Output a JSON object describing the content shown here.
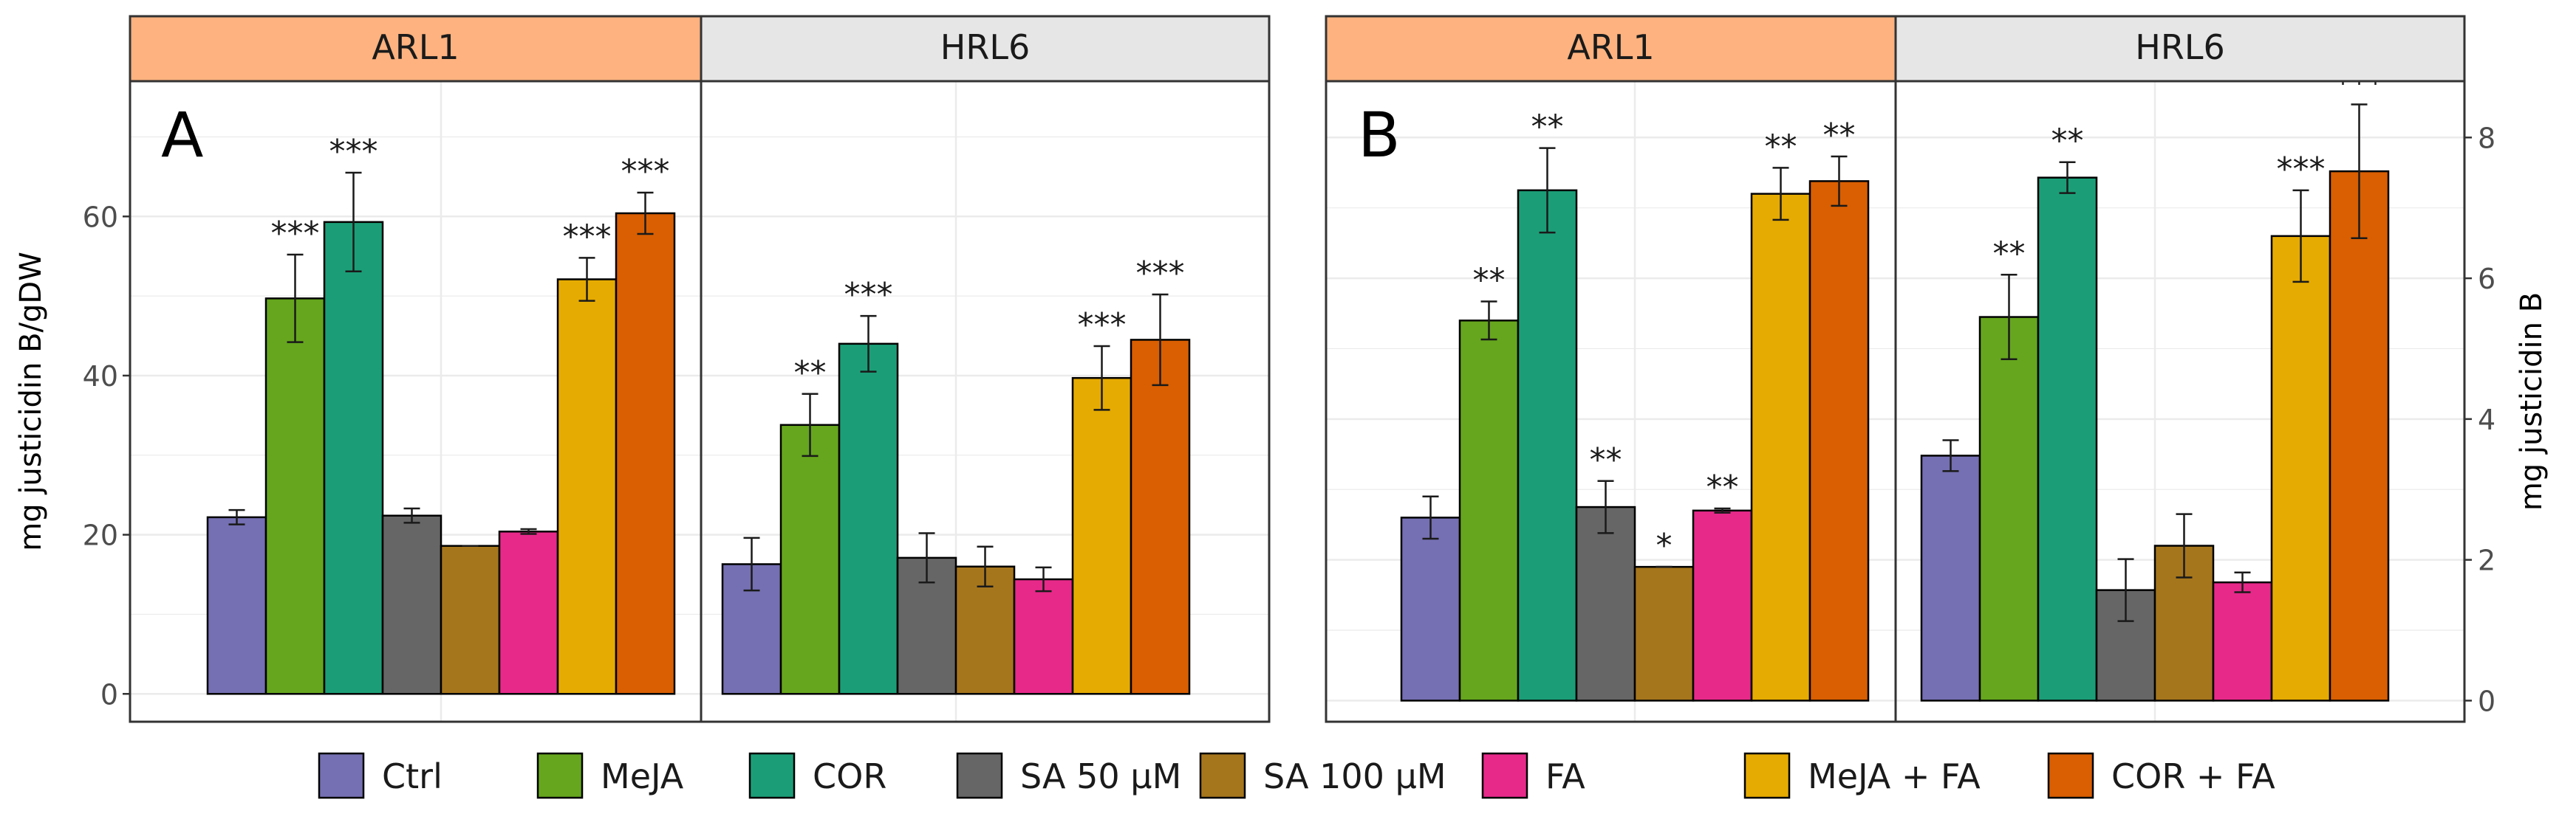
{
  "figure": {
    "legend": [
      {
        "label": "Ctrl",
        "color": "#7570b3"
      },
      {
        "label": "MeJA",
        "color": "#66a61e"
      },
      {
        "label": "COR",
        "color": "#1b9e77"
      },
      {
        "label": "SA 50 µM",
        "color": "#666666"
      },
      {
        "label": "SA 100 µM",
        "color": "#a6761d"
      },
      {
        "label": "FA",
        "color": "#e7298a"
      },
      {
        "label": "MeJA + FA",
        "color": "#e6ab02"
      },
      {
        "label": "COR + FA",
        "color": "#d95f02"
      }
    ],
    "strip_colors": {
      "ARL1": "#fdb27f",
      "HRL6": "#e6e6e6"
    }
  },
  "chart_data": [
    {
      "type": "bar",
      "panel_label": "A",
      "ylabel": "mg justicidin B/gDW",
      "yaxis_side": "left",
      "ylim": [
        -3.5,
        77
      ],
      "yticks": [
        0,
        20,
        40,
        60
      ],
      "grid": true,
      "facets": [
        {
          "name": "ARL1",
          "categories": [
            "Ctrl",
            "MeJA",
            "COR",
            "SA 50 µM",
            "SA 100 µM",
            "FA",
            "MeJA + FA",
            "COR + FA"
          ],
          "values": [
            22.2,
            49.7,
            59.3,
            22.4,
            18.6,
            20.4,
            52.1,
            60.4
          ],
          "errors": [
            0.9,
            5.5,
            6.2,
            0.9,
            0.0,
            0.3,
            2.7,
            2.6
          ],
          "significance": [
            "",
            "***",
            "***",
            "",
            "",
            "",
            "***",
            "***"
          ]
        },
        {
          "name": "HRL6",
          "categories": [
            "Ctrl",
            "MeJA",
            "COR",
            "SA 50 µM",
            "SA 100 µM",
            "FA",
            "MeJA + FA",
            "COR + FA"
          ],
          "values": [
            16.3,
            33.8,
            44.0,
            17.1,
            16.0,
            14.4,
            39.7,
            44.5
          ],
          "errors": [
            3.3,
            3.9,
            3.5,
            3.1,
            2.5,
            1.5,
            4.0,
            5.7
          ],
          "significance": [
            "",
            "**",
            "***",
            "",
            "",
            "",
            "***",
            "***"
          ]
        }
      ]
    },
    {
      "type": "bar",
      "panel_label": "B",
      "ylabel": "mg justicidin B",
      "yaxis_side": "right",
      "ylim": [
        -0.3,
        8.8
      ],
      "yticks": [
        0,
        2,
        4,
        6,
        8
      ],
      "grid": true,
      "facets": [
        {
          "name": "ARL1",
          "categories": [
            "Ctrl",
            "MeJA",
            "COR",
            "SA 50 µM",
            "SA 100 µM",
            "FA",
            "MeJA + FA",
            "COR + FA"
          ],
          "values": [
            2.6,
            5.4,
            7.25,
            2.75,
            1.9,
            2.7,
            7.2,
            7.38
          ],
          "errors": [
            0.3,
            0.27,
            0.6,
            0.37,
            0.0,
            0.03,
            0.37,
            0.35
          ],
          "significance": [
            "",
            "**",
            "**",
            "**",
            "*",
            "**",
            "**",
            "**"
          ]
        },
        {
          "name": "HRL6",
          "categories": [
            "Ctrl",
            "MeJA",
            "COR",
            "SA 50 µM",
            "SA 100 µM",
            "FA",
            "MeJA + FA",
            "COR + FA"
          ],
          "values": [
            3.48,
            5.45,
            7.43,
            1.57,
            2.2,
            1.68,
            6.6,
            7.52
          ],
          "errors": [
            0.22,
            0.6,
            0.22,
            0.44,
            0.45,
            0.14,
            0.65,
            0.95
          ],
          "significance": [
            "",
            "**",
            "**",
            "",
            "",
            "",
            "***",
            "***"
          ]
        }
      ]
    }
  ]
}
